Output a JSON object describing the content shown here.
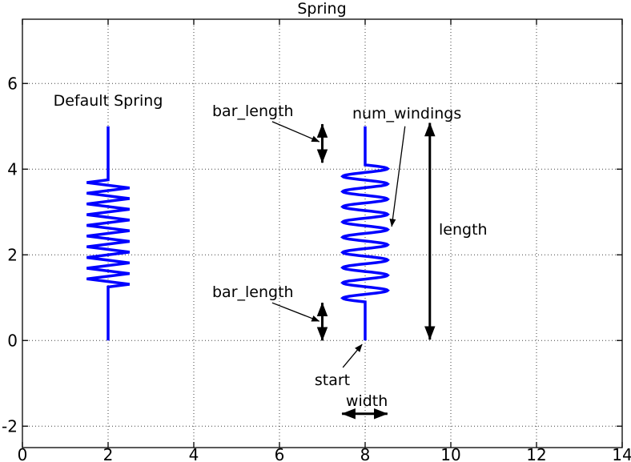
{
  "title": "Spring",
  "colors": {
    "spring": "#0000ff",
    "axis": "#000000",
    "grid": "#000000",
    "background": "#ffffff",
    "annotation": "#000000"
  },
  "chart_data": {
    "type": "line",
    "title": "Spring",
    "xlabel": "",
    "ylabel": "",
    "xlim": [
      0,
      14
    ],
    "ylim": [
      -2.5,
      7.5
    ],
    "xticks": [
      {
        "value": 0,
        "label": "0"
      },
      {
        "value": 2,
        "label": "2"
      },
      {
        "value": 4,
        "label": "4"
      },
      {
        "value": 6,
        "label": "6"
      },
      {
        "value": 8,
        "label": "8"
      },
      {
        "value": 10,
        "label": "10"
      },
      {
        "value": 12,
        "label": "12"
      },
      {
        "value": 14,
        "label": "14"
      }
    ],
    "yticks": [
      {
        "value": -2,
        "label": "-2"
      },
      {
        "value": 0,
        "label": "0"
      },
      {
        "value": 2,
        "label": "2"
      },
      {
        "value": 4,
        "label": "4"
      },
      {
        "value": 6,
        "label": "6"
      }
    ],
    "grid": {
      "style": "dotted",
      "lines_x": [
        2,
        4,
        6,
        8,
        10,
        12
      ],
      "lines_y": [
        -2,
        0,
        2,
        4,
        6
      ]
    },
    "series": [
      {
        "name": "default-spring",
        "shape": "zigzag",
        "color": "#0000ff",
        "x": 2,
        "start_y": 0,
        "length": 5,
        "bar_length": 1.25,
        "num_windings": 10,
        "width": 1.0
      },
      {
        "name": "annotated-spring",
        "shape": "sine",
        "color": "#0000ff",
        "x": 8,
        "start_y": 0,
        "length": 5,
        "bar_length": 0.9,
        "num_windings": 9,
        "width": 1.05
      }
    ],
    "labels": [
      {
        "id": "default-spring-label",
        "text": "Default Spring",
        "x": 2,
        "y": 5.48,
        "anchor": "middle"
      },
      {
        "id": "bar-length-top-label",
        "text": "bar_length",
        "x": 4.43,
        "y": 5.24,
        "anchor": "start"
      },
      {
        "id": "num-windings-label",
        "text": "num_windings",
        "x": 7.7,
        "y": 5.18,
        "anchor": "start"
      },
      {
        "id": "length-label",
        "text": "length",
        "x": 9.72,
        "y": 2.47,
        "anchor": "start"
      },
      {
        "id": "bar-length-bottom-label",
        "text": "bar_length",
        "x": 4.43,
        "y": 1.01,
        "anchor": "start"
      },
      {
        "id": "start-label",
        "text": "start",
        "x": 6.82,
        "y": -1.04,
        "anchor": "start"
      },
      {
        "id": "width-label",
        "text": "width",
        "x": 7.55,
        "y": -1.53,
        "anchor": "start"
      }
    ],
    "thin_arrows": [
      {
        "id": "bar-length-top-arrow",
        "x1": 5.83,
        "y1": 5.11,
        "x2": 6.93,
        "y2": 4.64
      },
      {
        "id": "bar-length-bottom-arrow",
        "x1": 5.83,
        "y1": 0.88,
        "x2": 6.93,
        "y2": 0.45
      },
      {
        "id": "num-windings-arrow",
        "x1": 8.93,
        "y1": 5.0,
        "x2": 8.62,
        "y2": 2.66
      },
      {
        "id": "start-arrow",
        "x1": 7.48,
        "y1": -0.63,
        "x2": 7.93,
        "y2": -0.09
      }
    ],
    "thick_arrows": [
      {
        "id": "bar-length-top-measure",
        "x1": 7.0,
        "y1": 5.05,
        "x2": 7.0,
        "y2": 4.15
      },
      {
        "id": "bar-length-bottom-measure",
        "x1": 7.0,
        "y1": 0.88,
        "x2": 7.0,
        "y2": 0.0
      },
      {
        "id": "length-measure",
        "x1": 9.51,
        "y1": 5.08,
        "x2": 9.51,
        "y2": 0.02
      },
      {
        "id": "width-measure",
        "x1": 7.46,
        "y1": -1.71,
        "x2": 8.52,
        "y2": -1.71
      }
    ]
  }
}
